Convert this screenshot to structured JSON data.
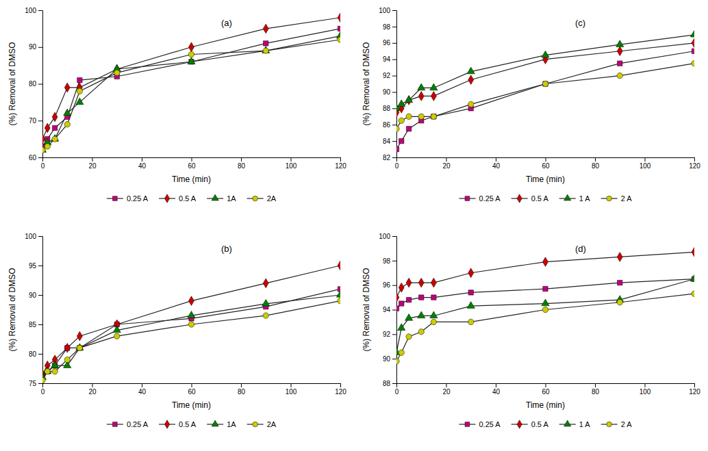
{
  "chart_data": [
    {
      "type": "line",
      "title": "(a)",
      "xlabel": "Time (min)",
      "ylabel": "(%) Removal of DMSO",
      "x": [
        0,
        2,
        5,
        10,
        15,
        30,
        60,
        90,
        120
      ],
      "xlim": [
        0,
        120
      ],
      "xticks": [
        0,
        20,
        40,
        60,
        80,
        100,
        120
      ],
      "ylim": [
        60,
        100
      ],
      "yticks": [
        60,
        70,
        80,
        90,
        100
      ],
      "grid": false,
      "legend": "below",
      "series": [
        {
          "name": "0.25 A",
          "color": "#c0007a",
          "marker": "square",
          "values": [
            63,
            65,
            68,
            71,
            81,
            82,
            86,
            91,
            95
          ]
        },
        {
          "name": "0.5 A",
          "color": "#cc0000",
          "marker": "diamond",
          "values": [
            65,
            68,
            71,
            79,
            79,
            84,
            90,
            95,
            98
          ]
        },
        {
          "name": "1A",
          "color": "#008000",
          "marker": "triangle",
          "values": [
            62,
            64,
            65,
            72,
            75,
            84,
            86,
            89,
            93
          ]
        },
        {
          "name": "2A",
          "color": "#cccc00",
          "marker": "circle",
          "values": [
            62,
            63,
            65,
            69,
            78,
            83,
            88,
            89,
            92
          ]
        }
      ]
    },
    {
      "type": "line",
      "title": "(c)",
      "xlabel": "Time (min)",
      "ylabel": "(%) Removal of DMSO",
      "x": [
        0,
        2,
        5,
        10,
        15,
        30,
        60,
        90,
        120
      ],
      "xlim": [
        0,
        120
      ],
      "xticks": [
        0,
        20,
        40,
        60,
        80,
        100,
        120
      ],
      "ylim": [
        82,
        100
      ],
      "yticks": [
        82,
        84,
        86,
        88,
        90,
        92,
        94,
        96,
        98,
        100
      ],
      "grid": false,
      "legend": "below",
      "series": [
        {
          "name": "0.25 A",
          "color": "#c0007a",
          "marker": "square",
          "values": [
            83,
            84,
            85.5,
            86.5,
            87,
            88,
            91,
            93.5,
            95
          ]
        },
        {
          "name": "0.5 A",
          "color": "#cc0000",
          "marker": "diamond",
          "values": [
            87.5,
            88,
            89,
            89.5,
            89.5,
            91.5,
            94,
            95,
            96
          ]
        },
        {
          "name": "1 A",
          "color": "#008000",
          "marker": "triangle",
          "values": [
            88,
            88.5,
            89,
            90.5,
            90.5,
            92.5,
            94.5,
            95.8,
            97
          ]
        },
        {
          "name": "2 A",
          "color": "#cccc00",
          "marker": "circle",
          "values": [
            85.5,
            86.5,
            87,
            87,
            87,
            88.5,
            91,
            92,
            93.5
          ]
        }
      ]
    },
    {
      "type": "line",
      "title": "(b)",
      "xlabel": "Time (min)",
      "ylabel": "(%) Removal of DMSO",
      "x": [
        0,
        2,
        5,
        10,
        15,
        30,
        60,
        90,
        120
      ],
      "xlim": [
        0,
        120
      ],
      "xticks": [
        0,
        20,
        40,
        60,
        80,
        100,
        120
      ],
      "ylim": [
        75,
        100
      ],
      "yticks": [
        75,
        80,
        85,
        90,
        95,
        100
      ],
      "grid": false,
      "legend": "below",
      "series": [
        {
          "name": "0.25 A",
          "color": "#c0007a",
          "marker": "square",
          "values": [
            76.5,
            77,
            78,
            81,
            81,
            85,
            86,
            88,
            91
          ]
        },
        {
          "name": "0.5 A",
          "color": "#cc0000",
          "marker": "diamond",
          "values": [
            76.5,
            78,
            79,
            81,
            83,
            85,
            89,
            92,
            95
          ]
        },
        {
          "name": "1A",
          "color": "#008000",
          "marker": "triangle",
          "values": [
            76,
            77,
            78,
            78,
            81,
            84,
            86.5,
            88.5,
            90
          ]
        },
        {
          "name": "2A",
          "color": "#cccc00",
          "marker": "circle",
          "values": [
            75.5,
            77,
            77,
            79,
            81,
            83,
            85,
            86.5,
            89
          ]
        }
      ]
    },
    {
      "type": "line",
      "title": "(d)",
      "xlabel": "Time (min)",
      "ylabel": "(%) Removal of DMSO",
      "x": [
        0,
        2,
        5,
        10,
        15,
        30,
        60,
        90,
        120
      ],
      "xlim": [
        0,
        120
      ],
      "xticks": [
        0,
        20,
        40,
        60,
        80,
        100,
        120
      ],
      "ylim": [
        88,
        100
      ],
      "yticks": [
        88,
        90,
        92,
        94,
        96,
        98,
        100
      ],
      "grid": false,
      "legend": "below",
      "series": [
        {
          "name": "0.25 A",
          "color": "#c0007a",
          "marker": "square",
          "values": [
            94.1,
            94.5,
            94.8,
            95.0,
            95.0,
            95.4,
            95.7,
            96.2,
            96.5
          ]
        },
        {
          "name": "0.5 A",
          "color": "#cc0000",
          "marker": "diamond",
          "values": [
            95.0,
            95.8,
            96.2,
            96.2,
            96.2,
            97.0,
            97.9,
            98.3,
            98.7
          ]
        },
        {
          "name": "1 A",
          "color": "#008000",
          "marker": "triangle",
          "values": [
            90.5,
            92.5,
            93.3,
            93.5,
            93.5,
            94.3,
            94.5,
            94.8,
            96.5
          ]
        },
        {
          "name": "2 A",
          "color": "#cccc00",
          "marker": "circle",
          "values": [
            89.8,
            90.5,
            91.8,
            92.2,
            93.0,
            93.0,
            94.0,
            94.6,
            95.3
          ]
        }
      ]
    }
  ]
}
